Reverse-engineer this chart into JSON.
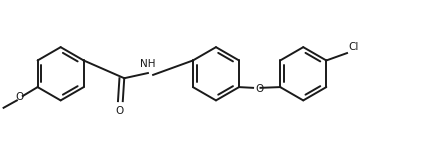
{
  "bg_color": "#ffffff",
  "line_color": "#1a1a1a",
  "line_width": 1.4,
  "fig_width": 4.29,
  "fig_height": 1.52,
  "dpi": 100,
  "r": 0.36,
  "doff": 0.052,
  "fs": 7.5,
  "xlim": [
    0.0,
    5.8
  ],
  "ylim": [
    0.05,
    1.65
  ]
}
